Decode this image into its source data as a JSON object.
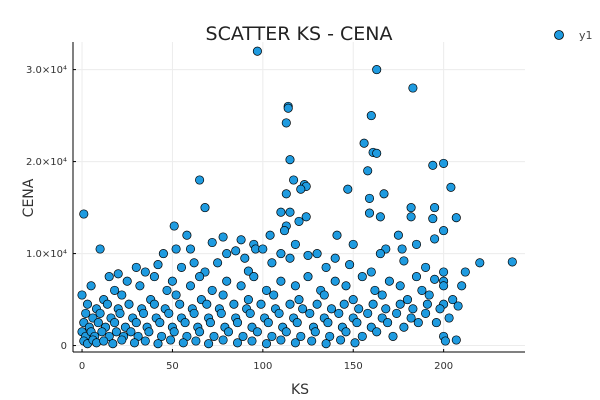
{
  "chart_data": {
    "type": "scatter",
    "title": "SCATTER KS - CENA",
    "xlabel": "KS",
    "ylabel": "CENA",
    "xlim": [
      -5,
      245
    ],
    "ylim": [
      -700,
      33000
    ],
    "x_ticks": [
      0,
      50,
      100,
      150,
      200
    ],
    "x_tick_labels": [
      "0",
      "50",
      "100",
      "150",
      "200"
    ],
    "y_ticks": [
      0,
      10000,
      20000,
      30000
    ],
    "y_tick_labels": [
      "0",
      "1.0×10⁴",
      "2.0×10⁴",
      "3.0×10⁴"
    ],
    "grid": true,
    "legend_position": "top-right",
    "series": [
      {
        "name": "y1",
        "color": "#1f9be0",
        "points": [
          [
            97,
            32000
          ],
          [
            163,
            30000
          ],
          [
            114,
            26000
          ],
          [
            114,
            25800
          ],
          [
            183,
            28000
          ],
          [
            160,
            25000
          ],
          [
            113,
            24200
          ],
          [
            156,
            22000
          ],
          [
            161,
            21000
          ],
          [
            200,
            19800
          ],
          [
            163,
            20900
          ],
          [
            115,
            20200
          ],
          [
            65,
            18000
          ],
          [
            117,
            18000
          ],
          [
            194,
            19600
          ],
          [
            123,
            17500
          ],
          [
            124,
            17300
          ],
          [
            158,
            19000
          ],
          [
            121,
            17000
          ],
          [
            204,
            17200
          ],
          [
            147,
            17000
          ],
          [
            113,
            16500
          ],
          [
            159,
            16000
          ],
          [
            167,
            16500
          ],
          [
            182,
            15000
          ],
          [
            195,
            15000
          ],
          [
            68,
            15000
          ],
          [
            110,
            14500
          ],
          [
            1,
            14300
          ],
          [
            115,
            14500
          ],
          [
            124,
            14000
          ],
          [
            159,
            14400
          ],
          [
            182,
            14000
          ],
          [
            194,
            13800
          ],
          [
            207,
            13900
          ],
          [
            120,
            13500
          ],
          [
            113,
            13000
          ],
          [
            165,
            14000
          ],
          [
            51,
            13000
          ],
          [
            112,
            12500
          ],
          [
            104,
            12000
          ],
          [
            141,
            12000
          ],
          [
            200,
            12500
          ],
          [
            58,
            12000
          ],
          [
            78,
            11800
          ],
          [
            95,
            11000
          ],
          [
            118,
            11000
          ],
          [
            88,
            11500
          ],
          [
            10,
            10500
          ],
          [
            150,
            11000
          ],
          [
            175,
            12000
          ],
          [
            185,
            11000
          ],
          [
            60,
            10500
          ],
          [
            72,
            11200
          ],
          [
            96,
            10500
          ],
          [
            110,
            10000
          ],
          [
            130,
            10000
          ],
          [
            168,
            10500
          ],
          [
            177,
            10500
          ],
          [
            195,
            11600
          ],
          [
            45,
            10000
          ],
          [
            52,
            10500
          ],
          [
            85,
            10300
          ],
          [
            100,
            10500
          ],
          [
            125,
            9800
          ],
          [
            165,
            10000
          ],
          [
            80,
            10000
          ],
          [
            90,
            9500
          ],
          [
            115,
            9500
          ],
          [
            140,
            9500
          ],
          [
            220,
            9000
          ],
          [
            238,
            9100
          ],
          [
            75,
            9000
          ],
          [
            62,
            9000
          ],
          [
            42,
            8800
          ],
          [
            30,
            8500
          ],
          [
            55,
            8500
          ],
          [
            105,
            9000
          ],
          [
            148,
            8800
          ],
          [
            178,
            9200
          ],
          [
            190,
            8500
          ],
          [
            212,
            8000
          ],
          [
            20,
            7800
          ],
          [
            35,
            8000
          ],
          [
            68,
            8000
          ],
          [
            92,
            8100
          ],
          [
            135,
            8500
          ],
          [
            160,
            8000
          ],
          [
            200,
            8000
          ],
          [
            200,
            7000
          ],
          [
            15,
            7500
          ],
          [
            25,
            7000
          ],
          [
            40,
            7500
          ],
          [
            50,
            7000
          ],
          [
            65,
            7500
          ],
          [
            80,
            7000
          ],
          [
            95,
            7500
          ],
          [
            110,
            7000
          ],
          [
            125,
            7500
          ],
          [
            140,
            7000
          ],
          [
            155,
            7500
          ],
          [
            170,
            7000
          ],
          [
            185,
            7500
          ],
          [
            195,
            7200
          ],
          [
            5,
            6500
          ],
          [
            18,
            6000
          ],
          [
            32,
            6500
          ],
          [
            47,
            6000
          ],
          [
            60,
            6500
          ],
          [
            72,
            6000
          ],
          [
            88,
            6500
          ],
          [
            102,
            6000
          ],
          [
            118,
            6500
          ],
          [
            132,
            6000
          ],
          [
            146,
            6500
          ],
          [
            162,
            6000
          ],
          [
            176,
            6500
          ],
          [
            188,
            6000
          ],
          [
            200,
            6500
          ],
          [
            210,
            6500
          ],
          [
            0,
            5500
          ],
          [
            12,
            5000
          ],
          [
            22,
            5500
          ],
          [
            38,
            5000
          ],
          [
            52,
            5500
          ],
          [
            66,
            5000
          ],
          [
            78,
            5500
          ],
          [
            92,
            5000
          ],
          [
            106,
            5500
          ],
          [
            120,
            5000
          ],
          [
            134,
            5500
          ],
          [
            150,
            5000
          ],
          [
            166,
            5500
          ],
          [
            180,
            5000
          ],
          [
            192,
            5500
          ],
          [
            205,
            5000
          ],
          [
            200,
            4500
          ],
          [
            208,
            4300
          ],
          [
            3,
            4500
          ],
          [
            8,
            4000
          ],
          [
            14,
            4500
          ],
          [
            20,
            4000
          ],
          [
            26,
            4500
          ],
          [
            33,
            4000
          ],
          [
            40,
            4500
          ],
          [
            46,
            4000
          ],
          [
            54,
            4500
          ],
          [
            61,
            4000
          ],
          [
            69,
            4500
          ],
          [
            76,
            4000
          ],
          [
            84,
            4500
          ],
          [
            91,
            4000
          ],
          [
            99,
            4500
          ],
          [
            107,
            4000
          ],
          [
            115,
            4500
          ],
          [
            122,
            4000
          ],
          [
            130,
            4500
          ],
          [
            138,
            4000
          ],
          [
            145,
            4500
          ],
          [
            153,
            4000
          ],
          [
            161,
            4500
          ],
          [
            168,
            4000
          ],
          [
            176,
            4500
          ],
          [
            183,
            4000
          ],
          [
            191,
            4500
          ],
          [
            198,
            4000
          ],
          [
            2,
            3500
          ],
          [
            6,
            3000
          ],
          [
            10,
            3500
          ],
          [
            16,
            3000
          ],
          [
            21,
            3500
          ],
          [
            28,
            3000
          ],
          [
            34,
            3500
          ],
          [
            41,
            3000
          ],
          [
            48,
            3500
          ],
          [
            55,
            3000
          ],
          [
            62,
            3500
          ],
          [
            70,
            3000
          ],
          [
            77,
            3500
          ],
          [
            85,
            3000
          ],
          [
            93,
            3500
          ],
          [
            101,
            3000
          ],
          [
            109,
            3500
          ],
          [
            117,
            3000
          ],
          [
            126,
            3500
          ],
          [
            134,
            3000
          ],
          [
            142,
            3500
          ],
          [
            150,
            3000
          ],
          [
            158,
            3500
          ],
          [
            166,
            3000
          ],
          [
            174,
            3500
          ],
          [
            182,
            3000
          ],
          [
            190,
            3500
          ],
          [
            1,
            2500
          ],
          [
            4,
            2000
          ],
          [
            9,
            2500
          ],
          [
            13,
            2000
          ],
          [
            18,
            2500
          ],
          [
            24,
            2000
          ],
          [
            30,
            2500
          ],
          [
            36,
            2000
          ],
          [
            43,
            2500
          ],
          [
            50,
            2000
          ],
          [
            57,
            2500
          ],
          [
            64,
            2000
          ],
          [
            71,
            2500
          ],
          [
            79,
            2000
          ],
          [
            86,
            2500
          ],
          [
            94,
            2000
          ],
          [
            103,
            2500
          ],
          [
            111,
            2000
          ],
          [
            119,
            2500
          ],
          [
            128,
            2000
          ],
          [
            136,
            2500
          ],
          [
            144,
            2000
          ],
          [
            152,
            2500
          ],
          [
            160,
            2000
          ],
          [
            169,
            2500
          ],
          [
            178,
            2000
          ],
          [
            186,
            2500
          ],
          [
            0,
            1500
          ],
          [
            2,
            1000
          ],
          [
            5,
            1500
          ],
          [
            7,
            1000
          ],
          [
            11,
            1500
          ],
          [
            15,
            1000
          ],
          [
            19,
            1500
          ],
          [
            23,
            1000
          ],
          [
            27,
            1500
          ],
          [
            31,
            1000
          ],
          [
            37,
            1500
          ],
          [
            44,
            1000
          ],
          [
            51,
            1500
          ],
          [
            58,
            1000
          ],
          [
            65,
            1500
          ],
          [
            73,
            1000
          ],
          [
            81,
            1500
          ],
          [
            89,
            1000
          ],
          [
            97,
            1500
          ],
          [
            105,
            1000
          ],
          [
            113,
            1500
          ],
          [
            121,
            1000
          ],
          [
            129,
            1500
          ],
          [
            137,
            1000
          ],
          [
            146,
            1500
          ],
          [
            155,
            1000
          ],
          [
            163,
            1500
          ],
          [
            172,
            1000
          ],
          [
            1,
            500
          ],
          [
            3,
            200
          ],
          [
            6,
            600
          ],
          [
            8,
            300
          ],
          [
            12,
            500
          ],
          [
            17,
            200
          ],
          [
            22,
            600
          ],
          [
            29,
            300
          ],
          [
            35,
            500
          ],
          [
            42,
            200
          ],
          [
            49,
            600
          ],
          [
            56,
            300
          ],
          [
            63,
            500
          ],
          [
            70,
            200
          ],
          [
            78,
            600
          ],
          [
            86,
            300
          ],
          [
            94,
            500
          ],
          [
            102,
            200
          ],
          [
            110,
            600
          ],
          [
            118,
            300
          ],
          [
            127,
            500
          ],
          [
            135,
            200
          ],
          [
            143,
            600
          ],
          [
            151,
            300
          ],
          [
            200,
            1000
          ],
          [
            201,
            500
          ],
          [
            207,
            600
          ],
          [
            196,
            2500
          ],
          [
            203,
            3000
          ]
        ]
      }
    ]
  }
}
